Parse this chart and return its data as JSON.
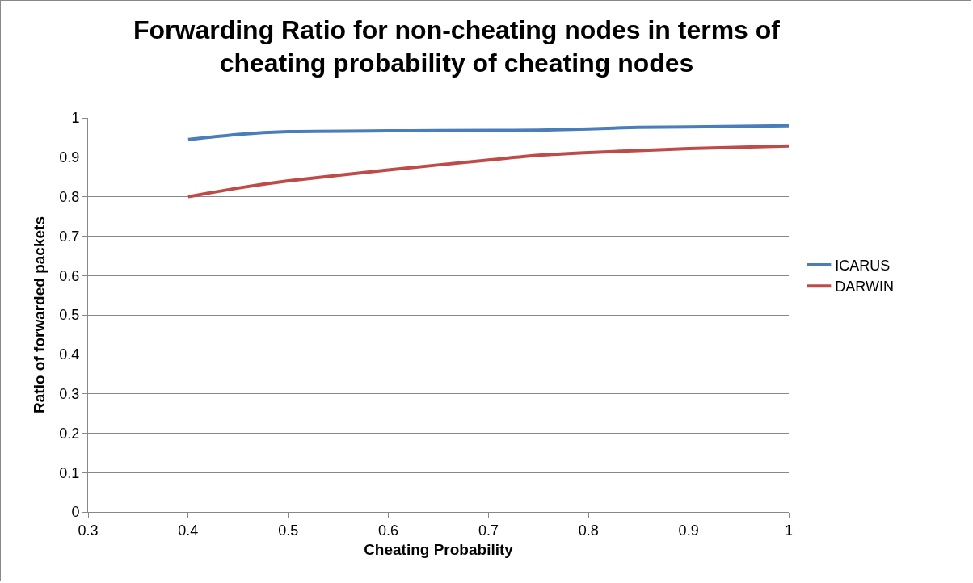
{
  "chart_data": {
    "type": "line",
    "title": "Forwarding Ratio for non-cheating nodes in terms of cheating probability of cheating nodes",
    "xlabel": "Cheating Probability",
    "ylabel": "Ratio of forwarded packets",
    "xlim": [
      0.3,
      1
    ],
    "xticks": [
      0.3,
      0.4,
      0.5,
      0.6,
      0.7,
      0.8,
      0.9,
      1
    ],
    "ylim": [
      0,
      1
    ],
    "yticks": [
      0,
      0.1,
      0.2,
      0.3,
      0.4,
      0.5,
      0.6,
      0.7,
      0.8,
      0.9,
      1
    ],
    "grid": "y",
    "legend": "right",
    "marker": "none",
    "line_style": "solid",
    "series": [
      {
        "name": "ICARUS",
        "color": "#4a7ebb",
        "x": [
          0.4,
          0.45,
          0.5,
          0.6,
          0.7,
          0.75,
          0.8,
          0.85,
          0.9,
          1
        ],
        "values": [
          0.945,
          0.958,
          0.965,
          0.967,
          0.968,
          0.969,
          0.972,
          0.976,
          0.977,
          0.98
        ]
      },
      {
        "name": "DARWIN",
        "color": "#be4b48",
        "x": [
          0.4,
          0.45,
          0.5,
          0.6,
          0.7,
          0.75,
          0.8,
          0.85,
          0.9,
          1
        ],
        "values": [
          0.8,
          0.822,
          0.84,
          0.868,
          0.893,
          0.905,
          0.912,
          0.917,
          0.922,
          0.929
        ]
      }
    ]
  }
}
